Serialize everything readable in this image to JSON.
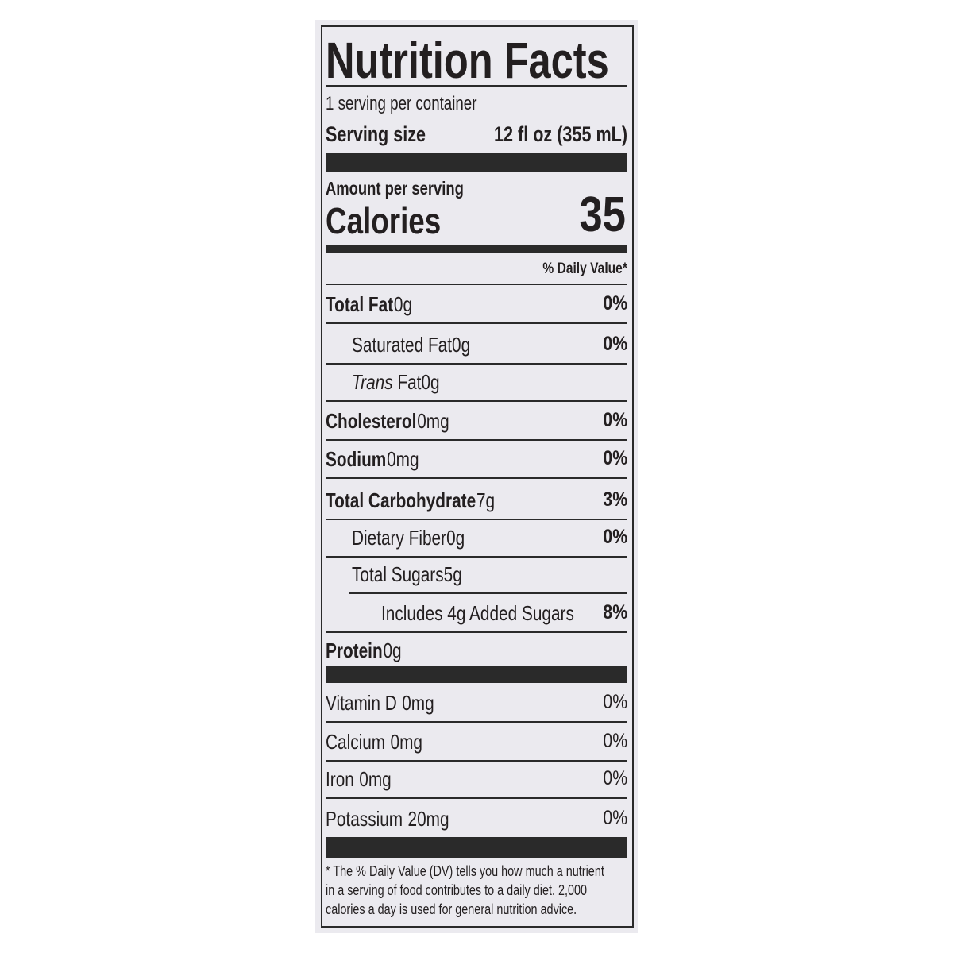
{
  "title": "Nutrition Facts",
  "servings_per_container": "1 serving per container",
  "serving_size": {
    "label": "Serving size",
    "value": "12 fl oz (355 mL)"
  },
  "amount_per_serving": "Amount per serving",
  "calories": {
    "label": "Calories",
    "value": "35"
  },
  "daily_value_header": "% Daily Value*",
  "nutrients": [
    {
      "name": "Total Fat",
      "amount": "0g",
      "dv": "0%",
      "bold": true,
      "indent": 0
    },
    {
      "name": "Saturated Fat",
      "amount": "0g",
      "dv": "0%",
      "bold": false,
      "indent": 1
    },
    {
      "name": "Trans",
      "name_suffix": " Fat",
      "amount": "0g",
      "dv": "",
      "bold": false,
      "indent": 1,
      "italic_name": true
    },
    {
      "name": "Cholesterol",
      "amount": "0mg",
      "dv": "0%",
      "bold": true,
      "indent": 0
    },
    {
      "name": "Sodium",
      "amount": "0mg",
      "dv": "0%",
      "bold": true,
      "indent": 0
    },
    {
      "name": "Total Carbohydrate",
      "amount": "7g",
      "dv": "3%",
      "bold": true,
      "indent": 0
    },
    {
      "name": "Dietary Fiber",
      "amount": "0g",
      "dv": "0%",
      "bold": false,
      "indent": 1
    },
    {
      "name": "Total Sugars",
      "amount": "5g",
      "dv": "",
      "bold": false,
      "indent": 1
    },
    {
      "name": "Includes 4g Added Sugars",
      "amount": "",
      "dv": "8%",
      "bold": false,
      "indent": 2
    },
    {
      "name": "Protein",
      "amount": "0g",
      "dv": "",
      "bold": true,
      "indent": 0
    }
  ],
  "vitamins": [
    {
      "name": "Vitamin D",
      "amount": "0mg",
      "dv": "0%"
    },
    {
      "name": "Calcium",
      "amount": "0mg",
      "dv": "0%"
    },
    {
      "name": "Iron",
      "amount": "0mg",
      "dv": "0%"
    },
    {
      "name": "Potassium",
      "amount": "20mg",
      "dv": "0%"
    }
  ],
  "footnote": [
    "* The % Daily Value (DV) tells you how much a nutrient",
    "in a serving of food contributes to a daily diet. 2,000",
    "calories a day is used for general nutrition advice."
  ],
  "colors": {
    "ink": "#231f20",
    "panel": "#ebeaef"
  }
}
